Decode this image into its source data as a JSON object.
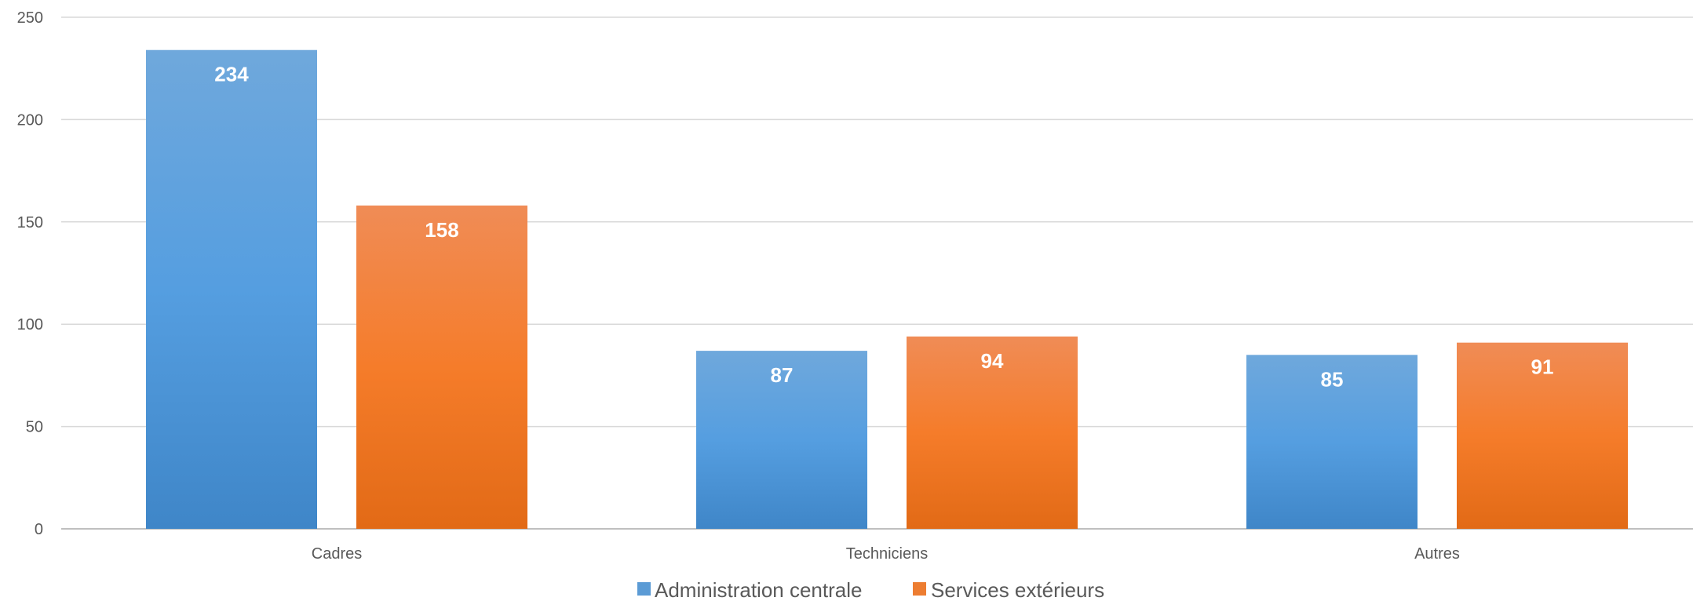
{
  "chart_data": {
    "type": "bar",
    "title": "",
    "xlabel": "",
    "ylabel": "",
    "categories": [
      "Cadres",
      "Techniciens",
      "Autres"
    ],
    "series": [
      {
        "name": "Administration centrale",
        "values": [
          234,
          87,
          85
        ],
        "color": "#5b9bd5"
      },
      {
        "name": "Services extérieurs",
        "values": [
          158,
          94,
          91
        ],
        "color": "#ed7d31"
      }
    ],
    "ylim": [
      0,
      250
    ],
    "yticks": [
      0,
      50,
      100,
      150,
      200,
      250
    ],
    "grid": true,
    "data_labels": true,
    "legend_position": "bottom"
  }
}
